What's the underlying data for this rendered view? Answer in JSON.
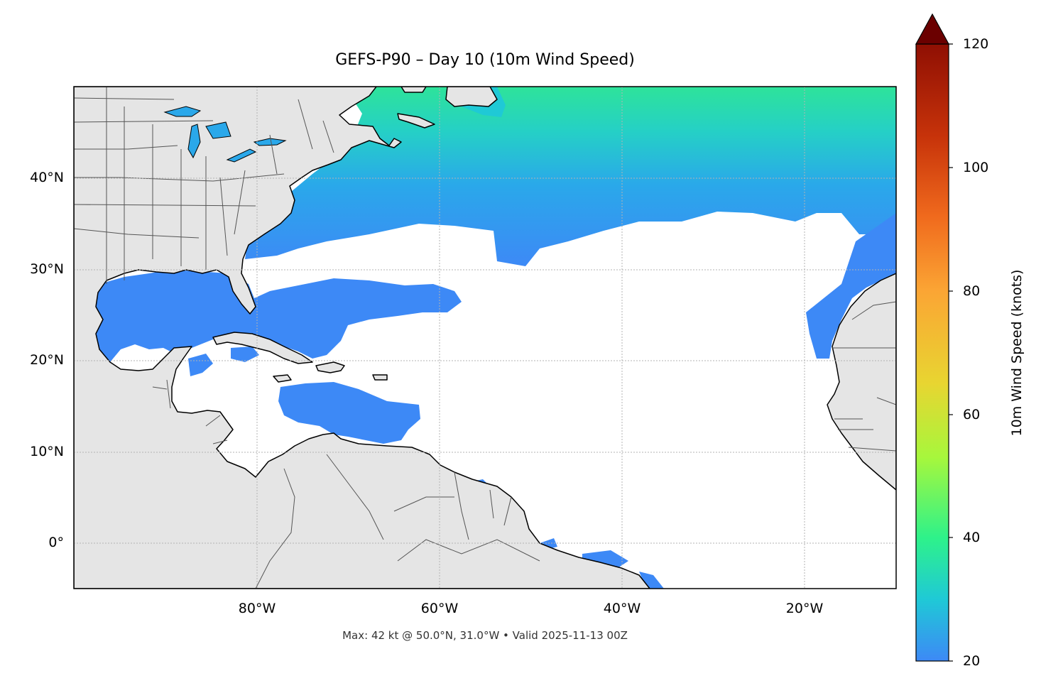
{
  "map": {
    "title": "GEFS-P90 – Day 10 (10m Wind Speed)",
    "footer": "Max: 42 kt @ 50.0°N, 31.0°W • Valid 2025-11-13 00Z",
    "lat_labels": [
      "40°N",
      "30°N",
      "20°N",
      "10°N",
      "0°"
    ],
    "lon_labels": [
      "80°W",
      "60°W",
      "40°W",
      "20°W"
    ],
    "extent": {
      "lon_min": -100,
      "lon_max": -10,
      "lat_min": -5,
      "lat_max": 50
    }
  },
  "colorbar": {
    "label": "10m Wind Speed (knots)",
    "ticks": [
      "20",
      "40",
      "60",
      "80",
      "100",
      "120"
    ],
    "min": 20,
    "max": 120,
    "extend": "max",
    "colors": [
      "#3d89f6",
      "#1fc9d6",
      "#2ef28a",
      "#a7f73c",
      "#e8d531",
      "#fba534",
      "#f06a1d",
      "#c7330a",
      "#8f0f03",
      "#6b0000"
    ]
  },
  "colors": {
    "land": "#e5e5e5",
    "ocean": "#ffffff",
    "wind_low": "#3d89f6",
    "wind_mid": "#1fc9d6",
    "wind_high": "#2ef28a"
  }
}
